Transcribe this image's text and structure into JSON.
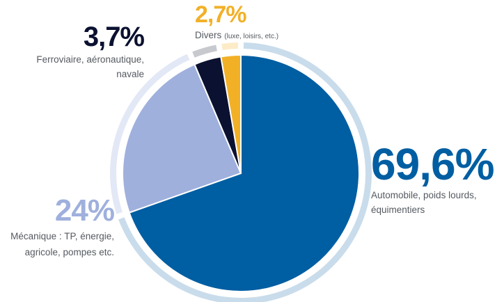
{
  "chart_data": {
    "type": "pie",
    "title": "",
    "slices": [
      {
        "value_label": "69,6%",
        "value": 69.6,
        "label": "Automobile, poids lourds,",
        "label2": "équimentiers",
        "color": "#005ea2",
        "ring_color": "#c9dceb"
      },
      {
        "value_label": "24%",
        "value": 24,
        "label": "Mécanique : TP, énergie,",
        "label2": "agricole, pompes etc.",
        "color": "#9fb0dd",
        "ring_color": "#e3e8f6"
      },
      {
        "value_label": "3,7%",
        "value": 3.7,
        "label": "Ferroviaire, aéronautique,",
        "label2": "navale",
        "color": "#0b1130",
        "ring_color": "#c8c9cf"
      },
      {
        "value_label": "2,7%",
        "value": 2.7,
        "label": "Divers",
        "label_small": "(luxe, loisirs, etc.)",
        "color": "#f2b027",
        "ring_color": "#fdebc8"
      }
    ]
  }
}
